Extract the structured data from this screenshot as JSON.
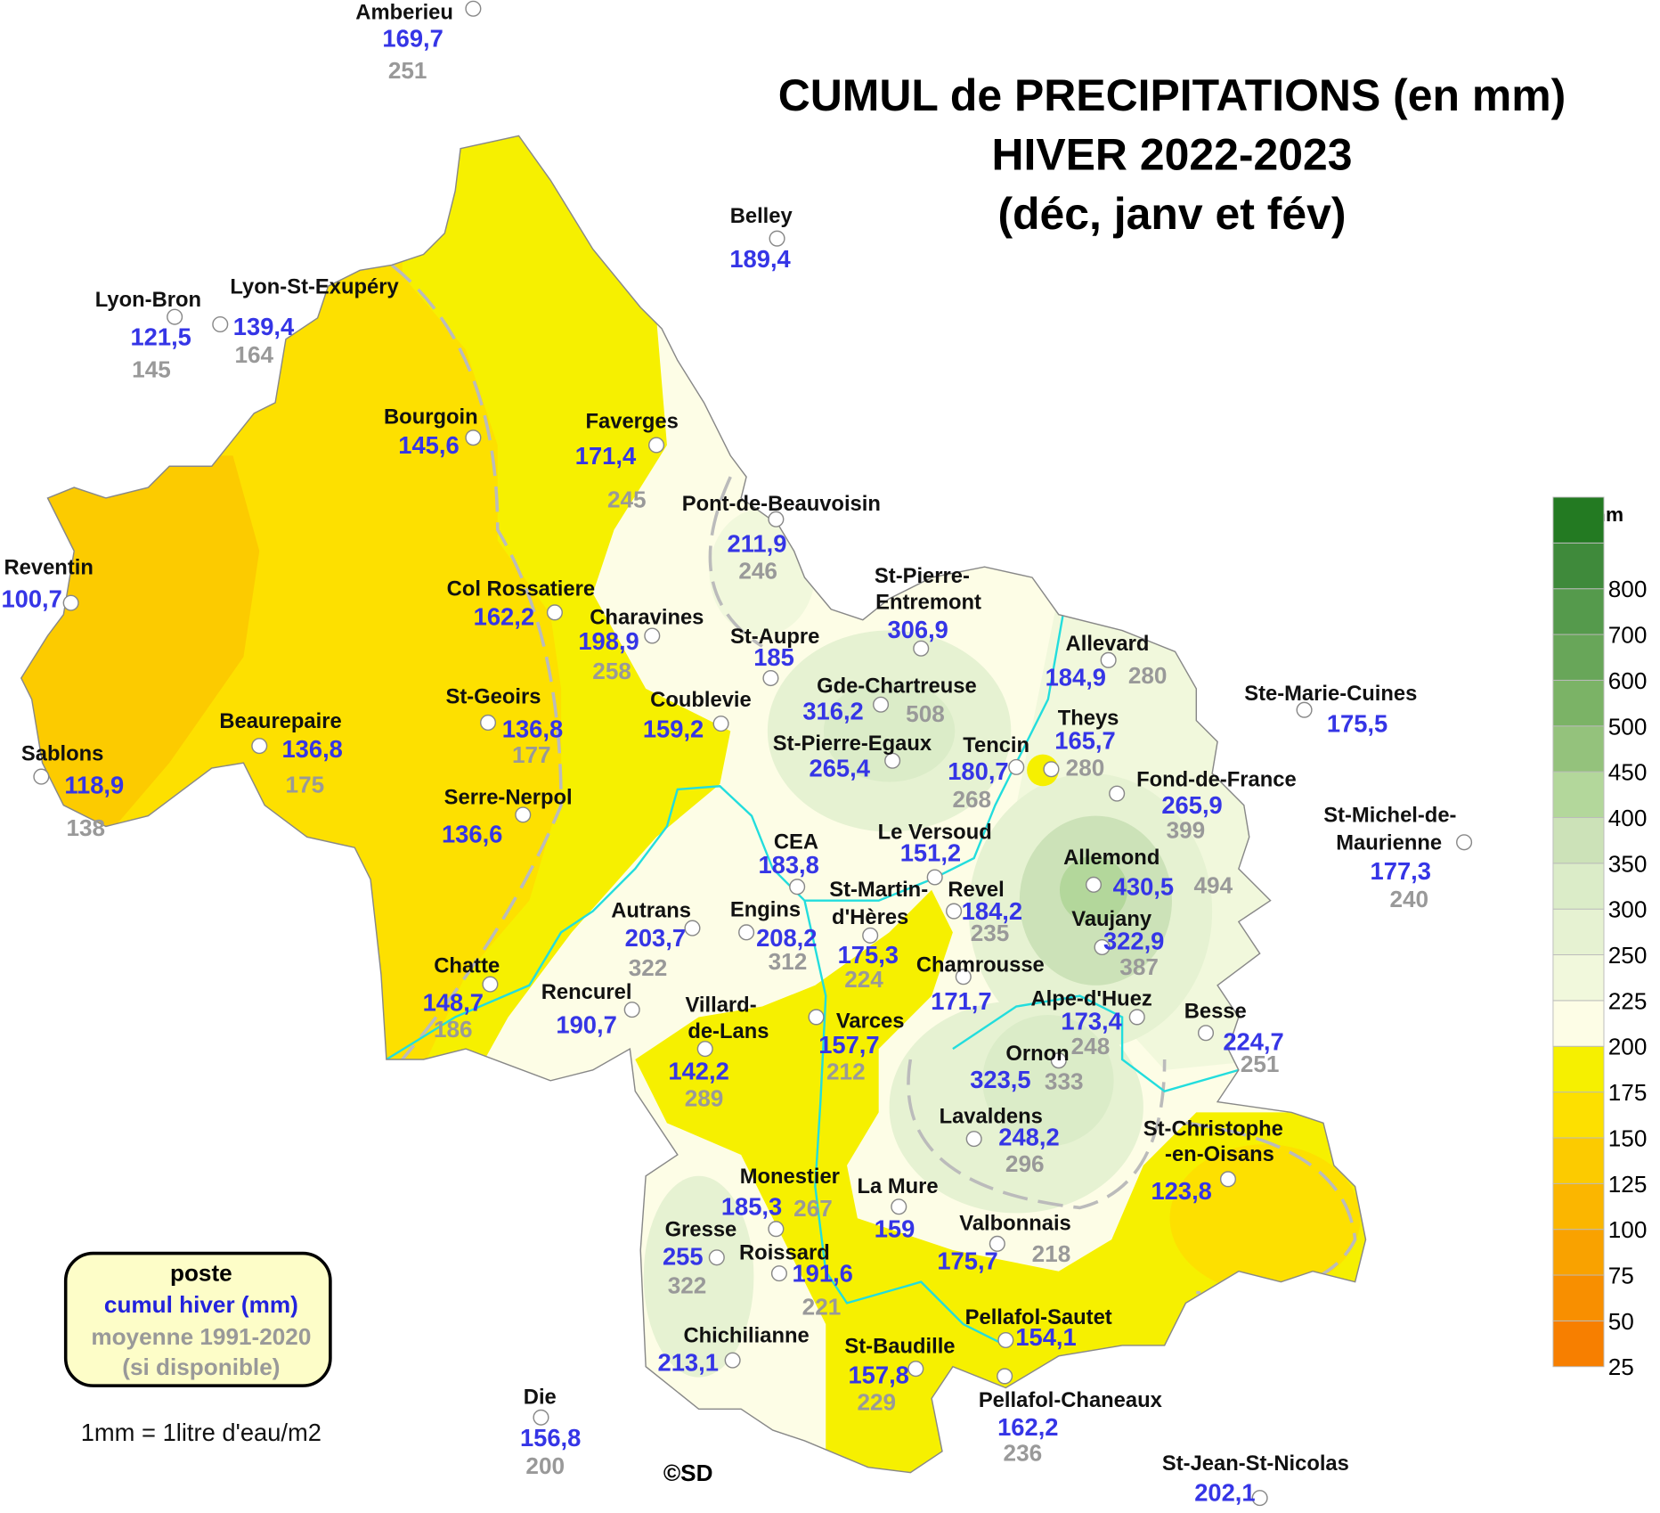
{
  "title": [
    "CUMUL de PRECIPITATIONS (en mm)",
    "HIVER 2022-2023",
    "(déc, janv et fév)"
  ],
  "legend": {
    "unit": "en mm",
    "ticks": [
      25,
      50,
      75,
      100,
      125,
      150,
      175,
      200,
      225,
      250,
      300,
      350,
      400,
      450,
      500,
      600,
      700,
      800
    ],
    "colors": [
      "#f77f00",
      "#f88f00",
      "#f9a200",
      "#fbb600",
      "#fccb00",
      "#fde000",
      "#f6f000",
      "#fdfde6",
      "#f1f8dc",
      "#e6f2d2",
      "#dbecc8",
      "#cce2b8",
      "#b3d79b",
      "#94c27c",
      "#7bb366",
      "#68a659",
      "#559a4c",
      "#3f8a3b",
      "#237a22"
    ]
  },
  "key": {
    "lines": [
      "poste",
      "cumul hiver (mm)",
      "moyenne 1991-2020",
      "(si disponible)"
    ],
    "note": "1mm = 1litre d'eau/m2"
  },
  "credit": "©SD",
  "stations": [
    {
      "name": [
        "Amberieu"
      ],
      "cumul": "169,7",
      "normal": "251"
    },
    {
      "name": [
        "Belley"
      ],
      "cumul": "189,4"
    },
    {
      "name": [
        "Lyon-Bron"
      ],
      "cumul": "121,5",
      "normal": "145"
    },
    {
      "name": [
        "Lyon-St-Exupéry"
      ],
      "cumul": "139,4",
      "normal": "164"
    },
    {
      "name": [
        "Bourgoin"
      ],
      "cumul": "145,6"
    },
    {
      "name": [
        "Faverges"
      ],
      "cumul": "171,4",
      "normal": "245"
    },
    {
      "name": [
        "Pont-de-Beauvoisin"
      ],
      "cumul": "211,9",
      "normal": "246"
    },
    {
      "name": [
        "Reventin"
      ],
      "cumul": "100,7"
    },
    {
      "name": [
        "Col Rossatiere"
      ],
      "cumul": "162,2"
    },
    {
      "name": [
        "Charavines"
      ],
      "cumul": "198,9",
      "normal": "258"
    },
    {
      "name": [
        "St-Aupre"
      ],
      "cumul": "185"
    },
    {
      "name": [
        "St-Pierre-",
        "Entremont"
      ],
      "cumul": "306,9"
    },
    {
      "name": [
        "Allevard"
      ],
      "cumul": "184,9",
      "normal": "280"
    },
    {
      "name": [
        "Gde-Chartreuse"
      ],
      "cumul": "316,2",
      "normal": "508"
    },
    {
      "name": [
        "Ste-Marie-Cuines"
      ],
      "cumul": "175,5"
    },
    {
      "name": [
        "St-Geoirs"
      ],
      "cumul": "136,8",
      "normal": "177"
    },
    {
      "name": [
        "Coublevie"
      ],
      "cumul": "159,2"
    },
    {
      "name": [
        "Beaurepaire"
      ],
      "cumul": "136,8",
      "normal": "175"
    },
    {
      "name": [
        "Theys"
      ],
      "cumul": "165,7",
      "normal": "280"
    },
    {
      "name": [
        "Sablons"
      ],
      "cumul": "118,9",
      "normal": "138"
    },
    {
      "name": [
        "St-Pierre-Egaux"
      ],
      "cumul": "265,4"
    },
    {
      "name": [
        "Tencin"
      ],
      "cumul": "180,7",
      "normal": "268"
    },
    {
      "name": [
        "Fond-de-France"
      ],
      "cumul": "265,9",
      "normal": "399"
    },
    {
      "name": [
        "Serre-Nerpol"
      ],
      "cumul": "136,6"
    },
    {
      "name": [
        "St-Michel-de-",
        "Maurienne"
      ],
      "cumul": "177,3",
      "normal": "240"
    },
    {
      "name": [
        "Le Versoud"
      ],
      "cumul": "151,2"
    },
    {
      "name": [
        "CEA"
      ],
      "cumul": "183,8"
    },
    {
      "name": [
        "Allemond"
      ],
      "cumul": "430,5",
      "normal": "494"
    },
    {
      "name": [
        "Revel"
      ],
      "cumul": "184,2",
      "normal": "235"
    },
    {
      "name": [
        "St-Martin-",
        "d'Hères"
      ],
      "cumul": "175,3",
      "normal": "224"
    },
    {
      "name": [
        "Vaujany"
      ],
      "cumul": "322,9",
      "normal": "387"
    },
    {
      "name": [
        "Autrans"
      ],
      "cumul": "203,7",
      "normal": "322"
    },
    {
      "name": [
        "Engins"
      ],
      "cumul": "208,2",
      "normal": "312"
    },
    {
      "name": [
        "Chamrousse"
      ],
      "cumul": "171,7"
    },
    {
      "name": [
        "Chatte"
      ],
      "cumul": "148,7",
      "normal": "186"
    },
    {
      "name": [
        "Rencurel"
      ],
      "cumul": "190,7"
    },
    {
      "name": [
        "Alpe-d'Huez"
      ],
      "cumul": "173,4",
      "normal": "248"
    },
    {
      "name": [
        "Besse"
      ],
      "cumul": "224,7",
      "normal": "251"
    },
    {
      "name": [
        "Villard-",
        "de-Lans"
      ],
      "cumul": "142,2",
      "normal": "289"
    },
    {
      "name": [
        "Varces"
      ],
      "cumul": "157,7",
      "normal": "212"
    },
    {
      "name": [
        "Ornon"
      ],
      "cumul": "323,5",
      "normal": "333"
    },
    {
      "name": [
        "Lavaldens"
      ],
      "cumul": "248,2",
      "normal": "296"
    },
    {
      "name": [
        "St-Christophe",
        "-en-Oisans"
      ],
      "cumul": "123,8"
    },
    {
      "name": [
        "Monestier"
      ],
      "cumul": "185,3",
      "normal": "267"
    },
    {
      "name": [
        "La Mure"
      ],
      "cumul": "159"
    },
    {
      "name": [
        "Gresse"
      ],
      "cumul": "255",
      "normal": "322"
    },
    {
      "name": [
        "Valbonnais"
      ],
      "cumul": "175,7",
      "normal": "218"
    },
    {
      "name": [
        "Roissard"
      ],
      "cumul": "191,6",
      "normal": "221"
    },
    {
      "name": [
        "Pellafol-Sautet"
      ],
      "cumul": "154,1"
    },
    {
      "name": [
        "Chichilianne"
      ],
      "cumul": "213,1"
    },
    {
      "name": [
        "St-Baudille"
      ],
      "cumul": "157,8",
      "normal": "229"
    },
    {
      "name": [
        "Die"
      ],
      "cumul": "156,8",
      "normal": "200"
    },
    {
      "name": [
        "Pellafol-Chaneaux"
      ],
      "cumul": "162,2",
      "normal": "236"
    },
    {
      "name": [
        "St-Jean-St-Nicolas"
      ],
      "cumul": "202,1"
    }
  ]
}
